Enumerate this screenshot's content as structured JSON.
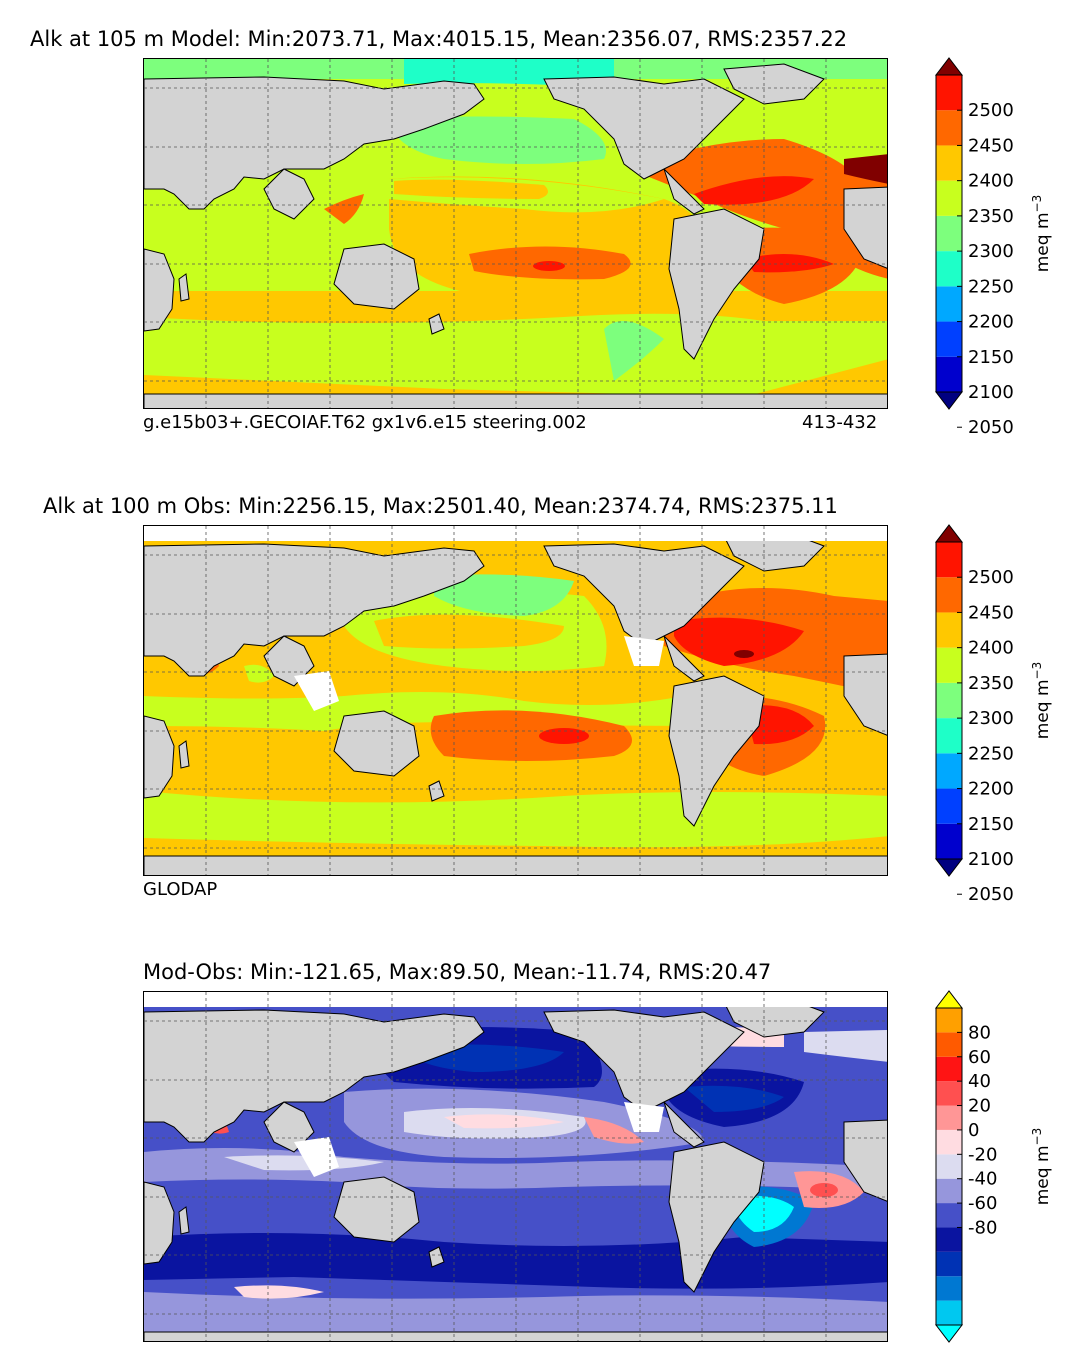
{
  "panels": [
    {
      "id": "model",
      "title": "Alk at 105 m Model: Min:2073.71, Max:4015.15, Mean:2356.07, RMS:2357.22",
      "caption_left": "g.e15b03+.GECOIAF.T62 gx1v6.e15 steering.002",
      "caption_right": "413-432",
      "colorbar": {
        "unit": "meq m",
        "unit_sup": "−3",
        "ticks": [
          "2500",
          "2450",
          "2400",
          "2350",
          "2300",
          "2250",
          "2200",
          "2150",
          "2100",
          "2050"
        ],
        "colors": [
          "#000080",
          "#0000cd",
          "#0040ff",
          "#00a8ff",
          "#1effc8",
          "#7dff7d",
          "#c8ff1e",
          "#ffc800",
          "#ff6800",
          "#ff1400",
          "#800000"
        ],
        "extend": "both"
      }
    },
    {
      "id": "obs",
      "title": "Alk at 100 m Obs: Min:2256.15, Max:2501.40, Mean:2374.74, RMS:2375.11",
      "caption_left": "GLODAP",
      "caption_right": "",
      "colorbar": {
        "unit": "meq m",
        "unit_sup": "−3",
        "ticks": [
          "2500",
          "2450",
          "2400",
          "2350",
          "2300",
          "2250",
          "2200",
          "2150",
          "2100",
          "2050"
        ],
        "colors": [
          "#000080",
          "#0000cd",
          "#0040ff",
          "#00a8ff",
          "#1effc8",
          "#7dff7d",
          "#c8ff1e",
          "#ffc800",
          "#ff6800",
          "#ff1400",
          "#800000"
        ],
        "extend": "both"
      }
    },
    {
      "id": "diff",
      "title": "Mod-Obs: Min:-121.65, Max:89.50, Mean:-11.74, RMS:20.47",
      "caption_left": "",
      "caption_right": "",
      "colorbar": {
        "unit": "meq m",
        "unit_sup": "−3",
        "ticks": [
          "80",
          "60",
          "40",
          "20",
          "0",
          "-20",
          "-40",
          "-60",
          "-80"
        ],
        "colors": [
          "#00ffff",
          "#00c8f0",
          "#0078d2",
          "#0032b4",
          "#0a14a0",
          "#4650c8",
          "#9696dc",
          "#dcdcf0",
          "#ffdce1",
          "#ff9696",
          "#ff5050",
          "#ff1414",
          "#ff5a00",
          "#ffa000",
          "#ffff00"
        ],
        "extend": "both"
      }
    }
  ],
  "colors": {
    "land": "#d3d3d3",
    "coastline": "#000000",
    "grid": "#555555",
    "model_ocean": "#c8ff1e",
    "obs_ocean": "#ffc800",
    "diff_ocean": "#4650c8"
  }
}
